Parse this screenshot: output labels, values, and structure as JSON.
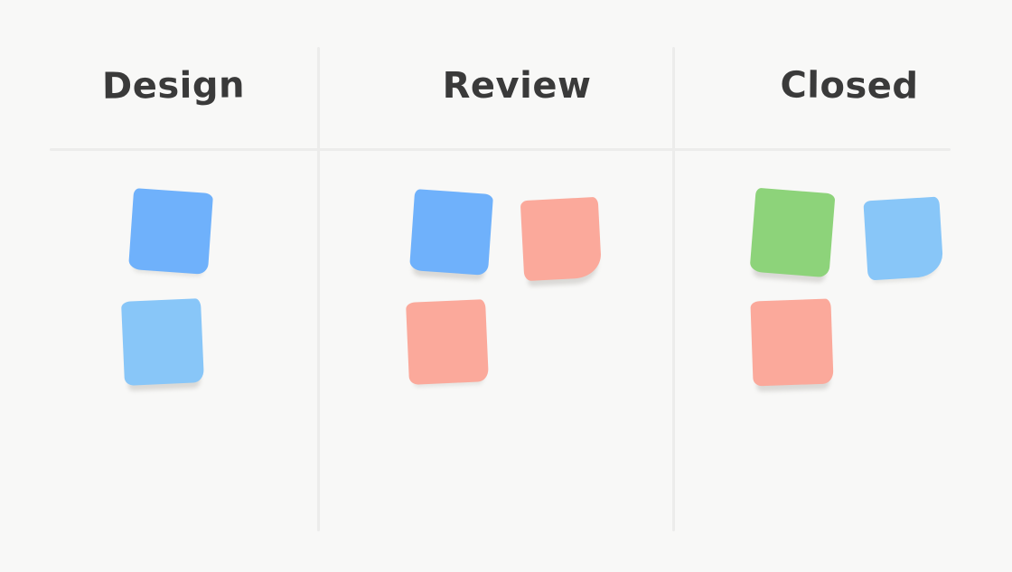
{
  "board": {
    "background_color": "#f8f8f7",
    "divider_color": "#ececeb",
    "title_color": "#3a3a3a",
    "note_shadow_color": "#efeeec",
    "columns": [
      {
        "label": "Design",
        "notes": [
          {
            "name": "note-blue",
            "color": "#6fb1fb"
          },
          {
            "name": "note-light-blue",
            "color": "#88c6f8"
          }
        ]
      },
      {
        "label": "Review",
        "notes": [
          {
            "name": "note-blue",
            "color": "#6fb1fb"
          },
          {
            "name": "note-salmon",
            "color": "#fba99b"
          },
          {
            "name": "note-salmon",
            "color": "#fba99b"
          }
        ]
      },
      {
        "label": "Closed",
        "notes": [
          {
            "name": "note-green",
            "color": "#8dd37a"
          },
          {
            "name": "note-light-blue",
            "color": "#88c6f8"
          },
          {
            "name": "note-salmon",
            "color": "#fba99b"
          }
        ]
      }
    ]
  }
}
